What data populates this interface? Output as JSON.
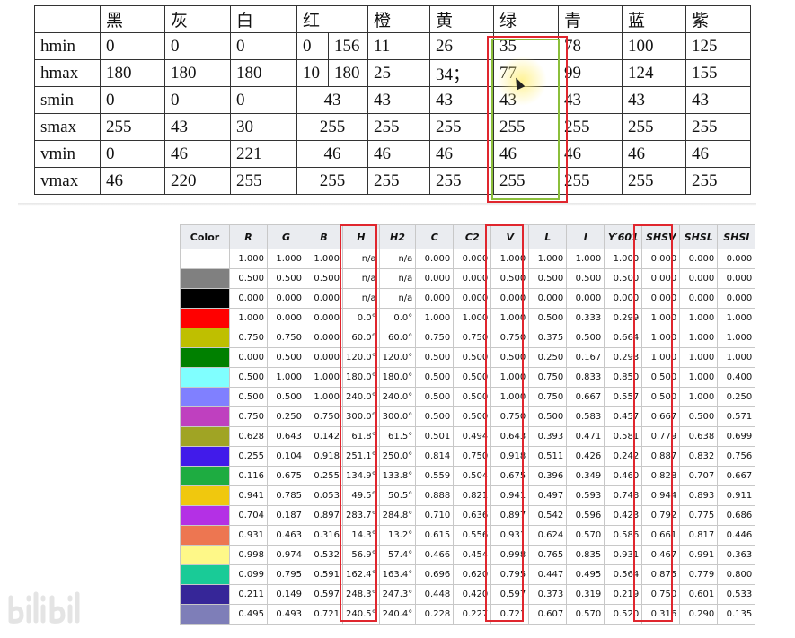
{
  "hsv_ranges": {
    "headers": [
      "",
      "黑",
      "灰",
      "白",
      "红",
      "橙",
      "黄",
      "绿",
      "青",
      "蓝",
      "紫"
    ],
    "rows": [
      {
        "label": "hmin",
        "cells": [
          "0",
          "0",
          "0",
          "0",
          "156",
          "11",
          "26",
          "35",
          "78",
          "100",
          "125"
        ]
      },
      {
        "label": "hmax",
        "cells": [
          "180",
          "180",
          "180",
          "10",
          "180",
          "25",
          "34；",
          "77",
          "99",
          "124",
          "155"
        ]
      },
      {
        "label": "smin",
        "cells": [
          "0",
          "0",
          "0",
          "43",
          "43",
          "43",
          "43",
          "43",
          "43",
          "43"
        ]
      },
      {
        "label": "smax",
        "cells": [
          "255",
          "43",
          "30",
          "255",
          "255",
          "255",
          "255",
          "255",
          "255",
          "255"
        ]
      },
      {
        "label": "vmin",
        "cells": [
          "0",
          "46",
          "221",
          "46",
          "46",
          "46",
          "46",
          "46",
          "46",
          "46"
        ]
      },
      {
        "label": "vmax",
        "cells": [
          "46",
          "220",
          "255",
          "255",
          "255",
          "255",
          "255",
          "255",
          "255",
          "255"
        ]
      }
    ]
  },
  "color_table": {
    "headers": [
      "Color",
      "R",
      "G",
      "B",
      "H",
      "H2",
      "C",
      "C2",
      "V",
      "L",
      "I",
      "Y′601",
      "SHSV",
      "SHSL",
      "SHSI"
    ],
    "rows": [
      {
        "swatch": "#ffffff",
        "values": [
          "1.000",
          "1.000",
          "1.000",
          "n/a",
          "n/a",
          "0.000",
          "0.000",
          "1.000",
          "1.000",
          "1.000",
          "1.000",
          "0.000",
          "0.000",
          "0.000"
        ]
      },
      {
        "swatch": "#808080",
        "values": [
          "0.500",
          "0.500",
          "0.500",
          "n/a",
          "n/a",
          "0.000",
          "0.000",
          "0.500",
          "0.500",
          "0.500",
          "0.500",
          "0.000",
          "0.000",
          "0.000"
        ]
      },
      {
        "swatch": "#000000",
        "values": [
          "0.000",
          "0.000",
          "0.000",
          "n/a",
          "n/a",
          "0.000",
          "0.000",
          "0.000",
          "0.000",
          "0.000",
          "0.000",
          "0.000",
          "0.000",
          "0.000"
        ]
      },
      {
        "swatch": "#ff0000",
        "values": [
          "1.000",
          "0.000",
          "0.000",
          "0.0°",
          "0.0°",
          "1.000",
          "1.000",
          "1.000",
          "0.500",
          "0.333",
          "0.299",
          "1.000",
          "1.000",
          "1.000"
        ]
      },
      {
        "swatch": "#bfbf00",
        "values": [
          "0.750",
          "0.750",
          "0.000",
          "60.0°",
          "60.0°",
          "0.750",
          "0.750",
          "0.750",
          "0.375",
          "0.500",
          "0.664",
          "1.000",
          "1.000",
          "1.000"
        ]
      },
      {
        "swatch": "#008000",
        "values": [
          "0.000",
          "0.500",
          "0.000",
          "120.0°",
          "120.0°",
          "0.500",
          "0.500",
          "0.500",
          "0.250",
          "0.167",
          "0.293",
          "1.000",
          "1.000",
          "1.000"
        ]
      },
      {
        "swatch": "#80ffff",
        "values": [
          "0.500",
          "1.000",
          "1.000",
          "180.0°",
          "180.0°",
          "0.500",
          "0.500",
          "1.000",
          "0.750",
          "0.833",
          "0.850",
          "0.500",
          "1.000",
          "0.400"
        ]
      },
      {
        "swatch": "#8080ff",
        "values": [
          "0.500",
          "0.500",
          "1.000",
          "240.0°",
          "240.0°",
          "0.500",
          "0.500",
          "1.000",
          "0.750",
          "0.667",
          "0.557",
          "0.500",
          "1.000",
          "0.250"
        ]
      },
      {
        "swatch": "#bf40bf",
        "values": [
          "0.750",
          "0.250",
          "0.750",
          "300.0°",
          "300.0°",
          "0.500",
          "0.500",
          "0.750",
          "0.500",
          "0.583",
          "0.457",
          "0.667",
          "0.500",
          "0.571"
        ]
      },
      {
        "swatch": "#a0a424",
        "values": [
          "0.628",
          "0.643",
          "0.142",
          "61.8°",
          "61.5°",
          "0.501",
          "0.494",
          "0.643",
          "0.393",
          "0.471",
          "0.581",
          "0.779",
          "0.638",
          "0.699"
        ]
      },
      {
        "swatch": "#411bea",
        "values": [
          "0.255",
          "0.104",
          "0.918",
          "251.1°",
          "250.0°",
          "0.814",
          "0.750",
          "0.918",
          "0.511",
          "0.426",
          "0.242",
          "0.887",
          "0.832",
          "0.756"
        ]
      },
      {
        "swatch": "#1eac41",
        "values": [
          "0.116",
          "0.675",
          "0.255",
          "134.9°",
          "133.8°",
          "0.559",
          "0.504",
          "0.675",
          "0.396",
          "0.349",
          "0.460",
          "0.828",
          "0.707",
          "0.667"
        ]
      },
      {
        "swatch": "#f0c80e",
        "values": [
          "0.941",
          "0.785",
          "0.053",
          "49.5°",
          "50.5°",
          "0.888",
          "0.821",
          "0.941",
          "0.497",
          "0.593",
          "0.748",
          "0.944",
          "0.893",
          "0.911"
        ]
      },
      {
        "swatch": "#b430e5",
        "values": [
          "0.704",
          "0.187",
          "0.897",
          "283.7°",
          "284.8°",
          "0.710",
          "0.636",
          "0.897",
          "0.542",
          "0.596",
          "0.423",
          "0.792",
          "0.775",
          "0.686"
        ]
      },
      {
        "swatch": "#ed7651",
        "values": [
          "0.931",
          "0.463",
          "0.316",
          "14.3°",
          "13.2°",
          "0.615",
          "0.556",
          "0.931",
          "0.624",
          "0.570",
          "0.586",
          "0.661",
          "0.817",
          "0.446"
        ]
      },
      {
        "swatch": "#fef888",
        "values": [
          "0.998",
          "0.974",
          "0.532",
          "56.9°",
          "57.4°",
          "0.466",
          "0.454",
          "0.998",
          "0.765",
          "0.835",
          "0.931",
          "0.467",
          "0.991",
          "0.363"
        ]
      },
      {
        "swatch": "#19cb97",
        "values": [
          "0.099",
          "0.795",
          "0.591",
          "162.4°",
          "163.4°",
          "0.696",
          "0.620",
          "0.795",
          "0.447",
          "0.495",
          "0.564",
          "0.875",
          "0.779",
          "0.800"
        ]
      },
      {
        "swatch": "#362698",
        "values": [
          "0.211",
          "0.149",
          "0.597",
          "248.3°",
          "247.3°",
          "0.448",
          "0.420",
          "0.597",
          "0.373",
          "0.319",
          "0.219",
          "0.750",
          "0.601",
          "0.533"
        ]
      },
      {
        "swatch": "#7e7eb8",
        "values": [
          "0.495",
          "0.493",
          "0.721",
          "240.5°",
          "240.4°",
          "0.228",
          "0.227",
          "0.721",
          "0.607",
          "0.570",
          "0.520",
          "0.316",
          "0.290",
          "0.135"
        ]
      }
    ]
  },
  "colors": {
    "highlight_red": "#e0262e",
    "highlight_green": "#8bbf3b"
  },
  "watermark_icon": "bilibili-logo-icon"
}
